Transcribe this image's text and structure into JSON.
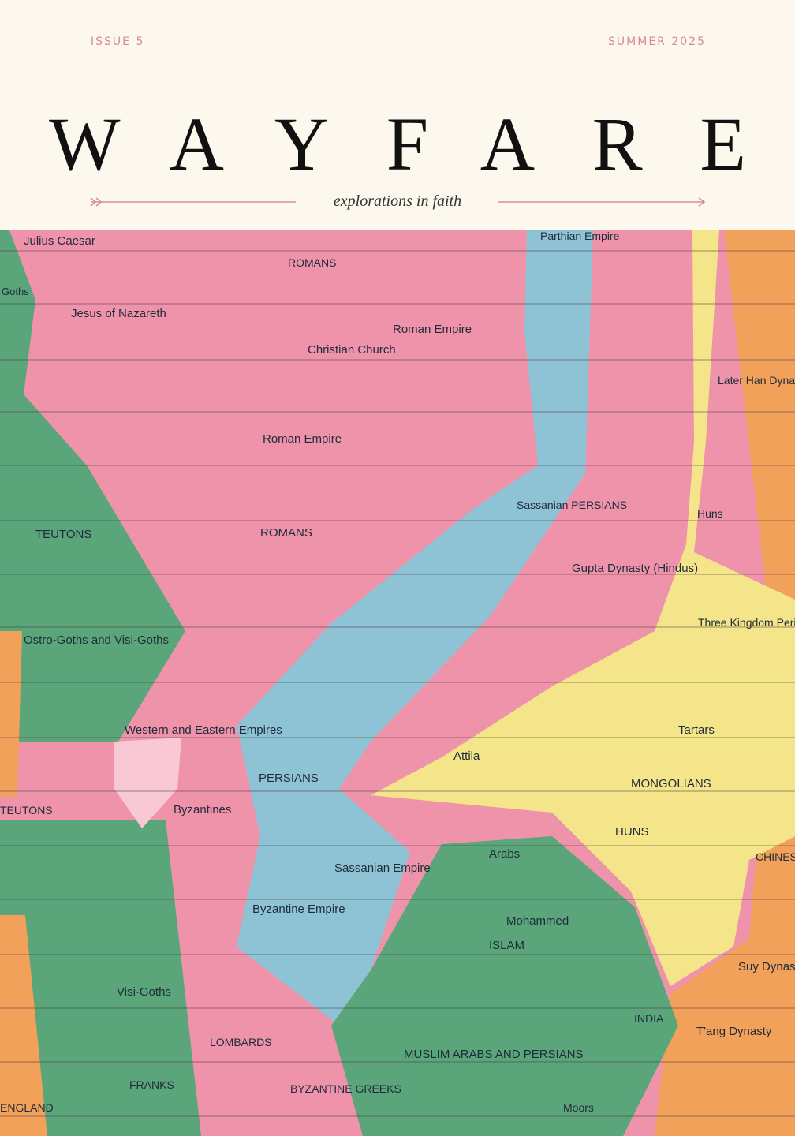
{
  "header": {
    "issue": "ISSUE 5",
    "season": "SUMMER 2025",
    "title": "WAYFARE",
    "tagline": "explorations in faith"
  },
  "map": {
    "labels": [
      "Julius Caesar",
      "ROMANS",
      "Parthian Empire",
      "Goths",
      "Jesus of Nazareth",
      "Roman Empire",
      "Christian Church",
      "Later Han Dynasty",
      "Roman Empire",
      "Sassanian PERSIANS",
      "TEUTONS",
      "ROMANS",
      "Huns",
      "Gupta Dynasty (Hindus)",
      "Ostro-Goths and Visi-Goths",
      "Three Kingdom Period",
      "Western and Eastern Empires",
      "Tartars",
      "PERSIANS",
      "Attila",
      "MONGOLIANS",
      "TEUTONS",
      "Byzantines",
      "HUNS",
      "Arabs",
      "CHINESE",
      "Sassanian Empire",
      "Byzantine Empire",
      "Mohammed",
      "ISLAM",
      "Visi-Goths",
      "Suy Dynasty",
      "INDIA",
      "T'ang Dynasty",
      "LOMBARDS",
      "MUSLIM ARABS AND PERSIANS",
      "FRANKS",
      "BYZANTINE GREEKS",
      "Moors",
      "ENGLAND"
    ]
  }
}
